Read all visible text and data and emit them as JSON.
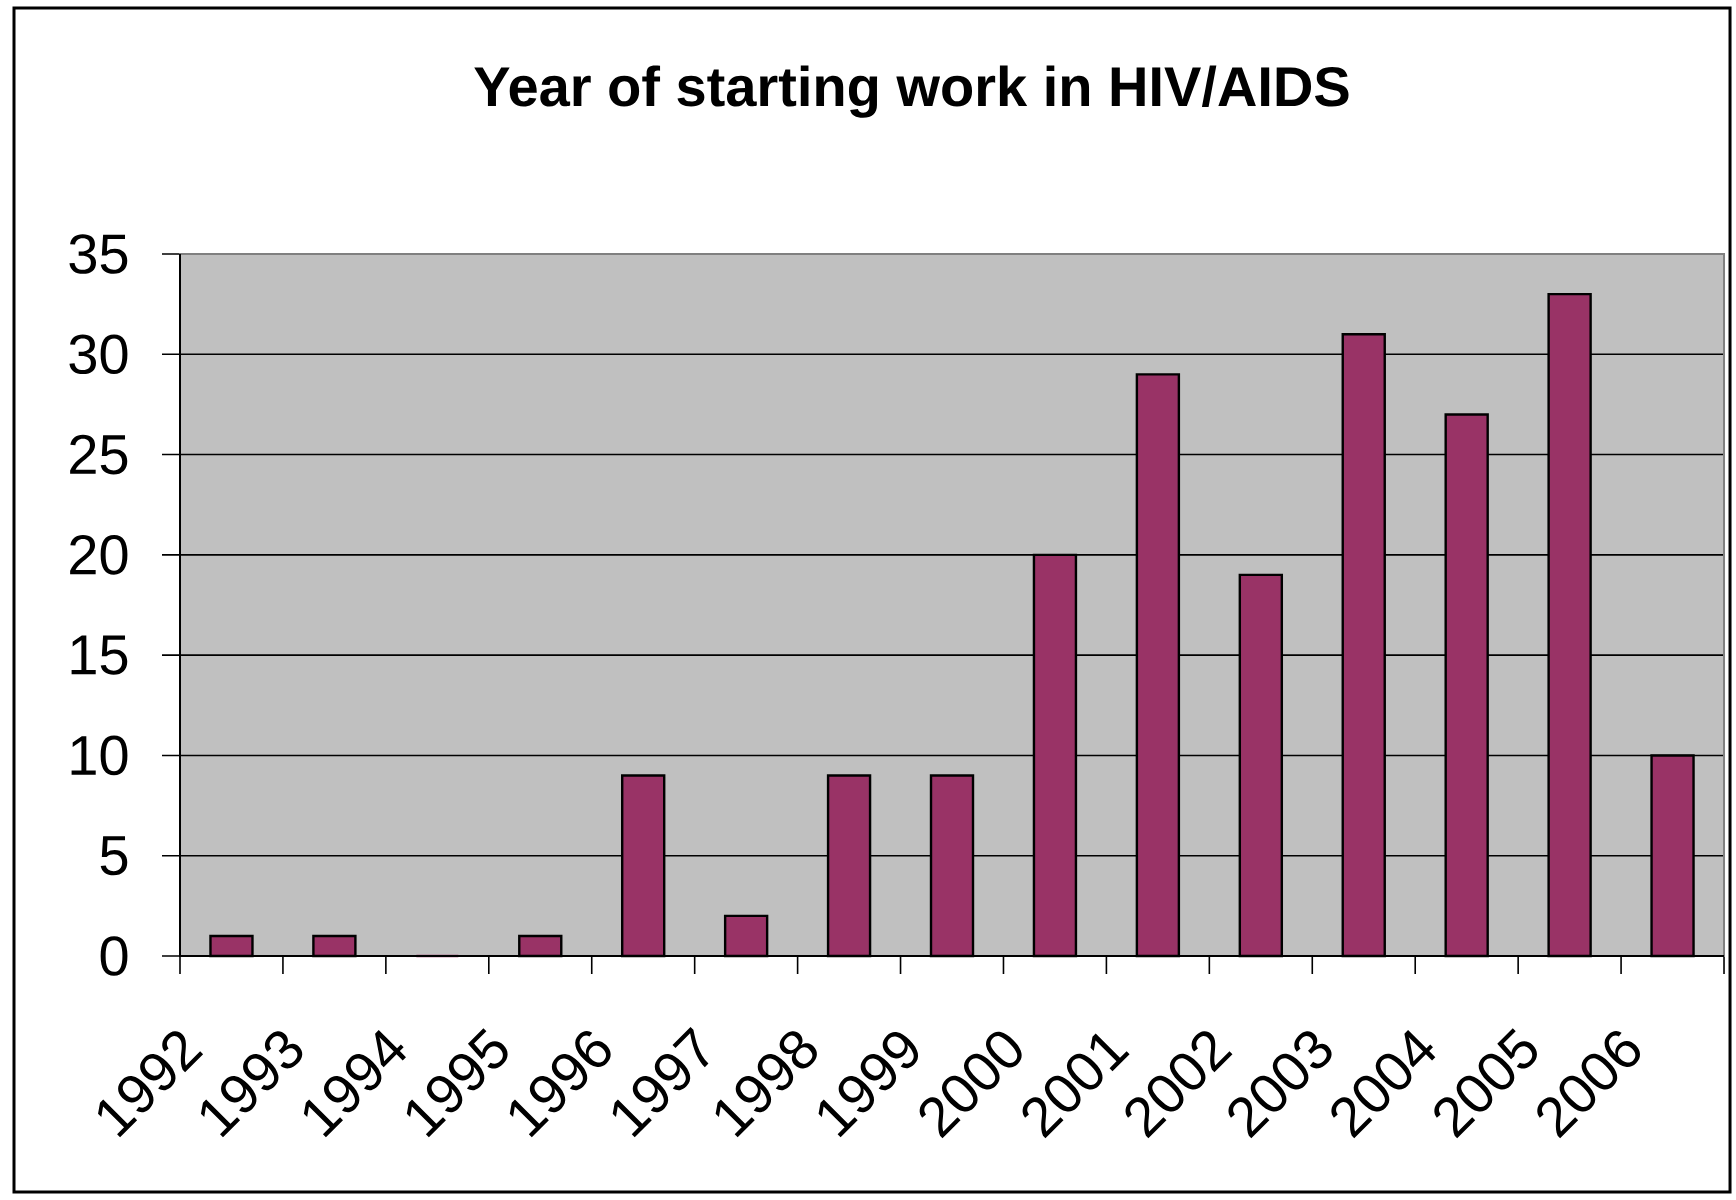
{
  "chart_data": {
    "type": "bar",
    "title": "Year of starting work in HIV/AIDS",
    "categories": [
      "1992",
      "1993",
      "1994",
      "1995",
      "1996",
      "1997",
      "1998",
      "1999",
      "2000",
      "2001",
      "2002",
      "2003",
      "2004",
      "2005",
      "2006"
    ],
    "values": [
      1,
      1,
      0,
      1,
      9,
      2,
      9,
      9,
      20,
      29,
      19,
      31,
      27,
      33,
      10
    ],
    "color": "#993366",
    "ylim": [
      0,
      35
    ],
    "yticks": [
      0,
      5,
      10,
      15,
      20,
      25,
      30,
      35
    ],
    "grid": "y"
  }
}
